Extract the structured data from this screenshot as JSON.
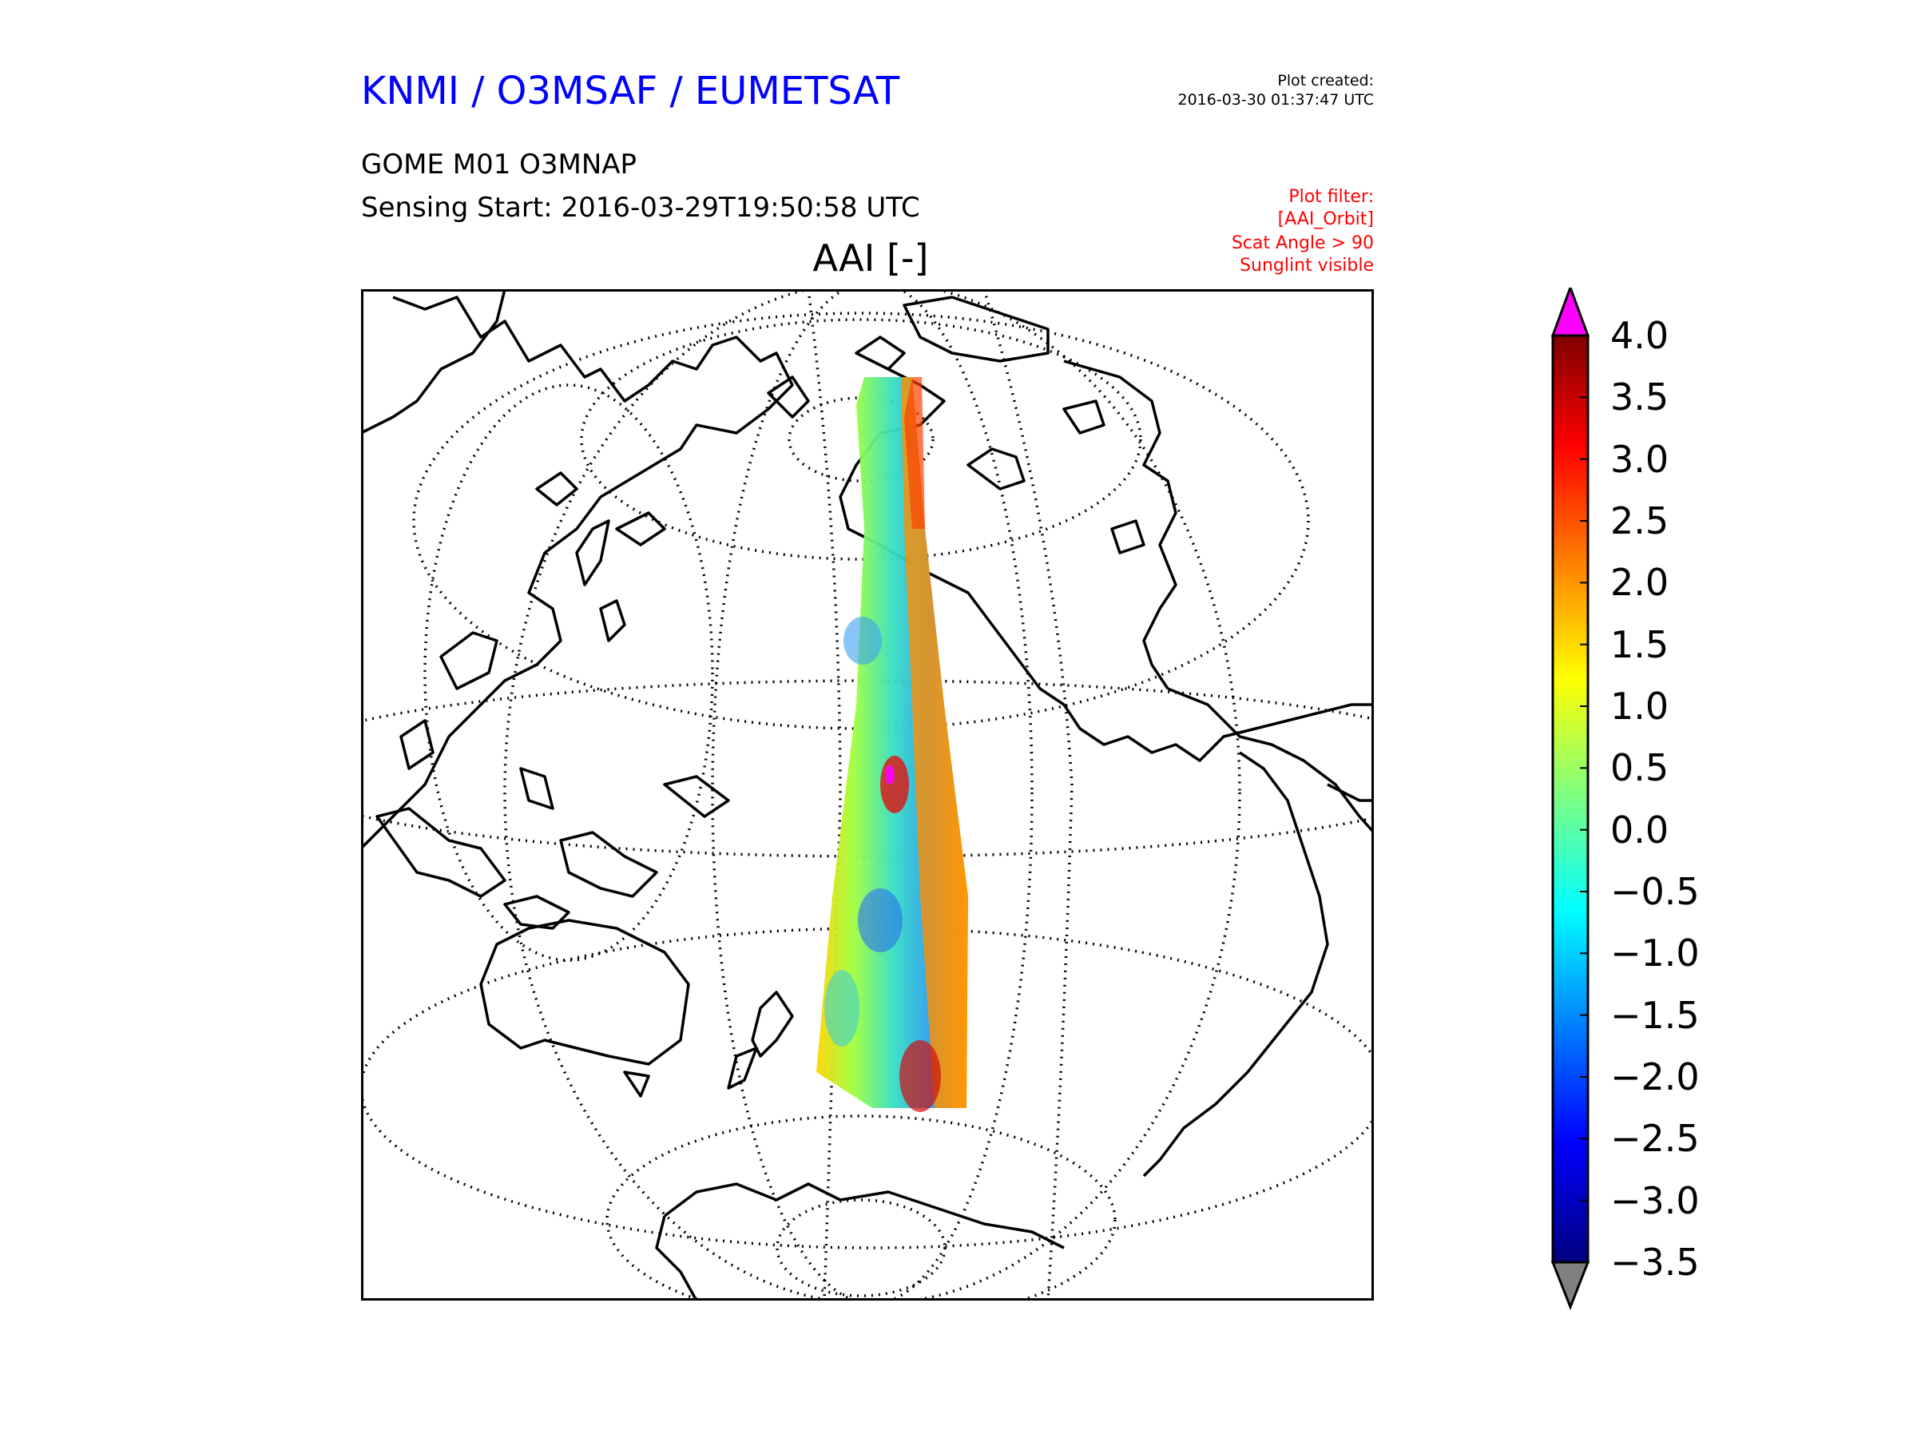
{
  "header": {
    "organization": "KNMI / O3MSAF / EUMETSAT",
    "plot_created_label": "Plot created:",
    "plot_created_time": "2016-03-30 01:37:47 UTC",
    "product": "GOME M01 O3MNAP",
    "sensing_start": "Sensing Start: 2016-03-29T19:50:58 UTC",
    "plot_filter": [
      "Plot filter:",
      "[AAI_Orbit]",
      "Scat Angle > 90",
      "Sunglint visible"
    ]
  },
  "map": {
    "title": "AAI [-]",
    "projection": "orthographic",
    "graticule": "dotted",
    "coastline_color": "#000000",
    "swath_colors": [
      "#ffd400",
      "#a0ff40",
      "#38e0c0",
      "#2aa0f0",
      "#ff6a10",
      "#d01010"
    ]
  },
  "colorbar": {
    "ticks": [
      "4.0",
      "3.5",
      "3.0",
      "2.5",
      "2.0",
      "1.5",
      "1.0",
      "0.5",
      "0.0",
      "−0.5",
      "−1.0",
      "−1.5",
      "−2.0",
      "−2.5",
      "−3.0",
      "−3.5"
    ],
    "min": -3.5,
    "max": 4.0,
    "over_color": "#ff00ff",
    "under_color": "#808080",
    "colormap": "jet"
  }
}
